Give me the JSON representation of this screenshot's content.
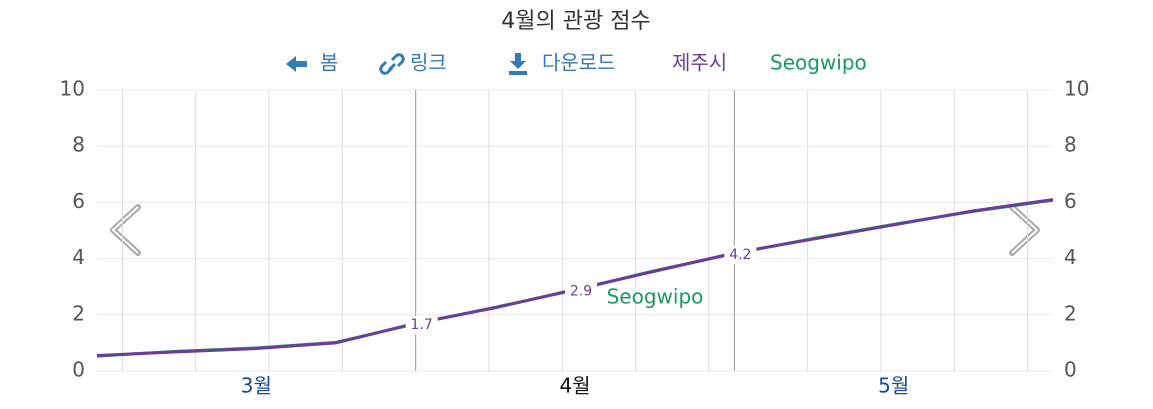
{
  "toolbar": [
    "봄",
    "링크",
    "다운로드"
  ],
  "chart_data": {
    "type": "line",
    "title": "4월의 관광 점수",
    "x": [
      -0.5,
      -0.25,
      0,
      0.25,
      0.5,
      0.75,
      1,
      1.25,
      1.5,
      1.75,
      2,
      2.25,
      2.5
    ],
    "xlim": [
      -0.5,
      2.5
    ],
    "xticks": [
      {
        "value": 0,
        "label": "3월"
      },
      {
        "value": 1,
        "label": "4월"
      },
      {
        "value": 2,
        "label": "5월"
      }
    ],
    "x_gridlines": [
      -0.42,
      -0.19,
      0.04,
      0.27,
      0.73,
      0.96,
      1.19,
      1.42,
      1.73,
      1.96,
      2.19,
      2.42
    ],
    "month_boundaries": [
      0.5,
      1.5
    ],
    "ylim": [
      0,
      10
    ],
    "yticks": [
      0,
      2,
      4,
      6,
      8,
      10
    ],
    "grid": true,
    "series": [
      {
        "name": "제주시",
        "color": "#6a3d9a",
        "values": [
          0.55,
          0.68,
          0.8,
          1.0,
          1.7,
          2.25,
          2.9,
          3.55,
          4.2,
          4.7,
          5.2,
          5.7,
          6.1
        ],
        "value_labels": [
          null,
          null,
          null,
          null,
          "1.7",
          null,
          "2.9",
          null,
          "4.2",
          null,
          null,
          null,
          null
        ]
      },
      {
        "name": "Seogwipo",
        "color": "#1a9a5c",
        "values": [
          0.53,
          0.7,
          0.82,
          1.02,
          1.68,
          2.27,
          2.88,
          3.57,
          4.18,
          4.72,
          5.22,
          5.68,
          6.08
        ]
      }
    ]
  }
}
